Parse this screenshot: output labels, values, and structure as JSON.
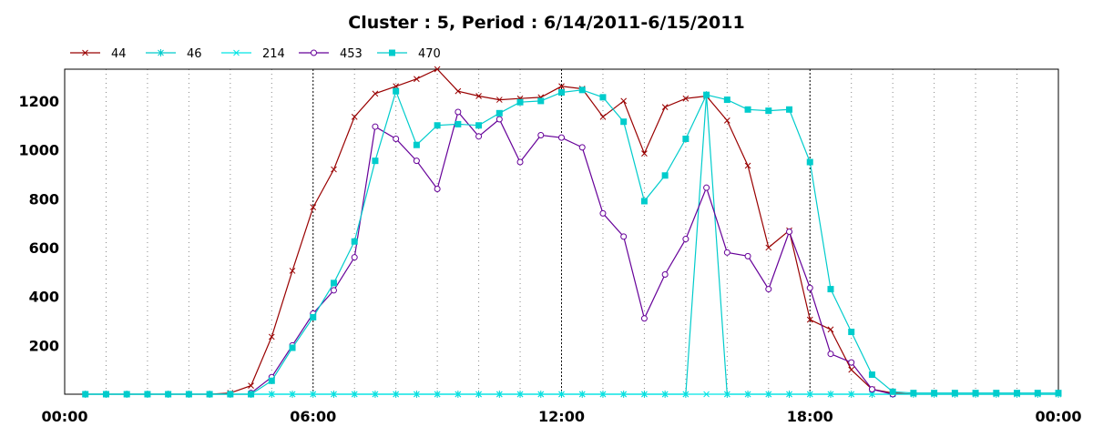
{
  "chart_data": {
    "type": "line",
    "title": "Cluster : 5, Period : 6/14/2011-6/15/2011",
    "xlabel": "",
    "ylabel": "",
    "x_unit": "hours",
    "xlim": [
      0,
      24
    ],
    "ylim": [
      0,
      1330
    ],
    "x_ticks": [
      0,
      6,
      12,
      18,
      24
    ],
    "x_tick_labels": [
      "00:00",
      "06:00",
      "12:00",
      "18:00",
      "00:00"
    ],
    "x_dotted_grid": [
      1,
      2,
      3,
      4,
      5,
      7,
      8,
      9,
      10,
      11,
      13,
      14,
      15,
      16,
      17,
      19,
      20,
      21,
      22,
      23
    ],
    "y_ticks": [
      200,
      400,
      600,
      800,
      1000,
      1200
    ],
    "y_tick_labels": [
      "200",
      "400",
      "600",
      "800",
      "1000",
      "1200"
    ],
    "grid": true,
    "legend_position": "top-left",
    "series": [
      {
        "name": "44",
        "color": "#990000",
        "marker": "x",
        "x": [
          0.5,
          1.0,
          1.5,
          2.0,
          2.5,
          3.0,
          3.5,
          4.0,
          4.5,
          5.0,
          5.5,
          6.0,
          6.5,
          7.0,
          7.5,
          8.0,
          8.5,
          9.0,
          9.5,
          10.0,
          10.5,
          11.0,
          11.5,
          12.0,
          12.5,
          13.0,
          13.5,
          14.0,
          14.5,
          15.0,
          15.5,
          16.0,
          16.5,
          17.0,
          17.5,
          18.0,
          18.5,
          19.0,
          19.5,
          20.0,
          20.5,
          21.0,
          21.5,
          22.0,
          22.5,
          23.0,
          23.5,
          24.0
        ],
        "y": [
          0,
          0,
          0,
          0,
          0,
          0,
          0,
          5,
          35,
          235,
          505,
          765,
          920,
          1135,
          1230,
          1260,
          1290,
          1330,
          1240,
          1220,
          1205,
          1210,
          1215,
          1260,
          1250,
          1135,
          1200,
          985,
          1175,
          1210,
          1220,
          1120,
          935,
          600,
          670,
          305,
          265,
          100,
          20,
          5,
          0,
          0,
          0,
          0,
          0,
          0,
          0,
          0
        ]
      },
      {
        "name": "46",
        "color": "#00cccc",
        "marker": "star",
        "x": [
          0.5,
          1.0,
          1.5,
          2.0,
          2.5,
          3.0,
          3.5,
          4.0,
          4.5,
          5.0,
          5.5,
          6.0,
          6.5,
          7.0,
          7.5,
          8.0,
          8.5,
          9.0,
          9.5,
          10.0,
          10.5,
          11.0,
          11.5,
          12.0,
          12.5,
          13.0,
          13.5,
          14.0,
          14.5,
          15.0,
          15.5,
          16.0,
          16.5,
          17.0,
          17.5,
          18.0,
          18.5,
          19.0,
          19.5,
          20.0,
          20.5,
          21.0,
          21.5,
          22.0,
          22.5,
          23.0,
          23.5,
          24.0
        ],
        "y": [
          0,
          0,
          0,
          0,
          0,
          0,
          0,
          0,
          0,
          0,
          0,
          0,
          0,
          0,
          0,
          0,
          0,
          0,
          0,
          0,
          0,
          0,
          0,
          0,
          0,
          0,
          0,
          0,
          0,
          0,
          1225,
          0,
          0,
          0,
          0,
          0,
          0,
          0,
          0,
          0,
          0,
          0,
          0,
          0,
          0,
          0,
          0,
          0
        ]
      },
      {
        "name": "214",
        "color": "#00e5e5",
        "marker": "x",
        "x": [
          0.5,
          1.0,
          1.5,
          2.0,
          2.5,
          3.0,
          3.5,
          4.0,
          4.5,
          5.0,
          5.5,
          6.0,
          6.5,
          7.0,
          7.5,
          8.0,
          8.5,
          9.0,
          9.5,
          10.0,
          10.5,
          11.0,
          11.5,
          12.0,
          12.5,
          13.0,
          13.5,
          14.0,
          14.5,
          15.0,
          15.5,
          16.0,
          16.5,
          17.0,
          17.5,
          18.0,
          18.5,
          19.0,
          19.5,
          20.0,
          20.5,
          21.0,
          21.5,
          22.0,
          22.5,
          23.0,
          23.5,
          24.0
        ],
        "y": [
          0,
          0,
          0,
          0,
          0,
          0,
          0,
          0,
          0,
          0,
          0,
          0,
          0,
          0,
          0,
          0,
          0,
          0,
          0,
          0,
          0,
          0,
          0,
          0,
          0,
          0,
          0,
          0,
          0,
          0,
          0,
          0,
          0,
          0,
          0,
          0,
          0,
          0,
          0,
          0,
          0,
          0,
          0,
          0,
          0,
          0,
          0,
          0
        ]
      },
      {
        "name": "453",
        "color": "#660099",
        "marker": "circle",
        "x": [
          4.5,
          5.0,
          5.5,
          6.0,
          6.5,
          7.0,
          7.5,
          8.0,
          8.5,
          9.0,
          9.5,
          10.0,
          10.5,
          11.0,
          11.5,
          12.0,
          12.5,
          13.0,
          13.5,
          14.0,
          14.5,
          15.0,
          15.5,
          16.0,
          16.5,
          17.0,
          17.5,
          18.0,
          18.5,
          19.0,
          19.5,
          20.0
        ],
        "y": [
          5,
          70,
          200,
          330,
          425,
          560,
          1095,
          1045,
          955,
          840,
          1155,
          1055,
          1125,
          950,
          1060,
          1050,
          1010,
          740,
          645,
          310,
          490,
          635,
          845,
          580,
          565,
          430,
          665,
          435,
          165,
          130,
          20,
          0
        ]
      },
      {
        "name": "470",
        "color": "#00cccc",
        "marker": "square",
        "x": [
          0.5,
          1.0,
          1.5,
          2.0,
          2.5,
          3.0,
          3.5,
          4.0,
          4.5,
          5.0,
          5.5,
          6.0,
          6.5,
          7.0,
          7.5,
          8.0,
          8.5,
          9.0,
          9.5,
          10.0,
          10.5,
          11.0,
          11.5,
          12.0,
          12.5,
          13.0,
          13.5,
          14.0,
          14.5,
          15.0,
          15.5,
          16.0,
          16.5,
          17.0,
          17.5,
          18.0,
          18.5,
          19.0,
          19.5,
          20.0,
          20.5,
          21.0,
          21.5,
          22.0,
          22.5,
          23.0,
          23.5,
          24.0
        ],
        "y": [
          0,
          0,
          0,
          0,
          0,
          0,
          0,
          0,
          0,
          55,
          190,
          315,
          455,
          625,
          955,
          1240,
          1020,
          1100,
          1105,
          1100,
          1150,
          1195,
          1200,
          1235,
          1245,
          1215,
          1115,
          790,
          895,
          1045,
          1225,
          1205,
          1165,
          1160,
          1165,
          950,
          430,
          255,
          80,
          10,
          5,
          5,
          5,
          5,
          5,
          5,
          5,
          5
        ]
      }
    ]
  }
}
